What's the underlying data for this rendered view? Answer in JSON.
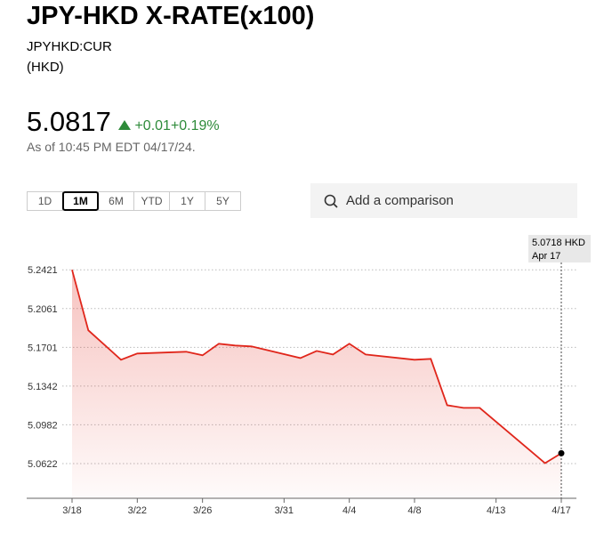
{
  "header": {
    "title": "JPY-HKD X-RATE(x100)",
    "symbol": "JPYHKD:CUR",
    "currency": "(HKD)",
    "price": "5.0817",
    "change": "+0.01",
    "change_pct": "+0.19%",
    "as_of": "As of 10:45 PM EDT 04/17/24."
  },
  "ranges": {
    "options": [
      "1D",
      "1M",
      "6M",
      "YTD",
      "1Y",
      "5Y"
    ],
    "selected": "1M"
  },
  "search": {
    "placeholder": "Add a comparison"
  },
  "chart_data": {
    "type": "line",
    "color": "#e0261b",
    "x": [
      "3/18",
      "3/19",
      "3/21",
      "3/22",
      "3/25",
      "3/26",
      "3/27",
      "3/28",
      "3/29",
      "4/1",
      "4/2",
      "4/3",
      "4/4",
      "4/5",
      "4/8",
      "4/9",
      "4/10",
      "4/11",
      "4/12",
      "4/16",
      "4/17"
    ],
    "values": [
      5.2421,
      5.1859,
      5.1586,
      5.1644,
      5.166,
      5.1627,
      5.1735,
      5.1718,
      5.171,
      5.1602,
      5.1668,
      5.1635,
      5.1735,
      5.1635,
      5.1586,
      5.1594,
      5.1164,
      5.1139,
      5.1139,
      5.0626,
      5.0718
    ],
    "xticks": [
      "3/18",
      "3/22",
      "3/26",
      "3/31",
      "4/4",
      "4/8",
      "4/13",
      "4/17"
    ],
    "ylim": [
      5.03,
      5.253
    ],
    "yticks": [
      5.2421,
      5.2061,
      5.1701,
      5.1342,
      5.0982,
      5.0622
    ],
    "grid": true,
    "annotation": {
      "value_label": "5.0718 HKD",
      "date": "Apr 17"
    }
  }
}
